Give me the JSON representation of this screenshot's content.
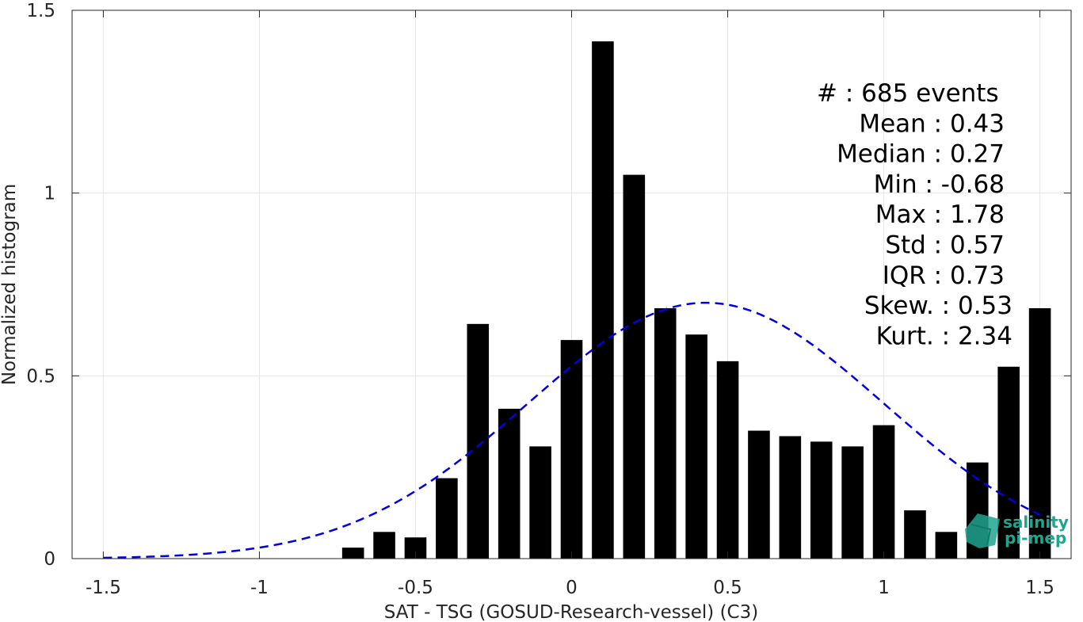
{
  "chart_data": {
    "type": "bar",
    "xlabel": "SAT - TSG (GOSUD-Research-vessel) (C3)",
    "ylabel": "Normalized histogram",
    "xlim": [
      -1.6,
      1.6
    ],
    "ylim": [
      0,
      1.5
    ],
    "grid": true,
    "x_ticks": [
      "-1.5",
      "-1",
      "-0.5",
      "0",
      "0.5",
      "1",
      "1.5"
    ],
    "y_ticks": [
      "0",
      "0.5",
      "1",
      "1.5"
    ],
    "bins": {
      "centers": [
        -0.7,
        -0.6,
        -0.5,
        -0.4,
        -0.3,
        -0.2,
        -0.1,
        0.0,
        0.1,
        0.2,
        0.3,
        0.4,
        0.5,
        0.6,
        0.7,
        0.8,
        0.9,
        1.0,
        1.1,
        1.2,
        1.3,
        1.4,
        1.5
      ],
      "values": [
        0.03,
        0.073,
        0.058,
        0.22,
        0.642,
        0.41,
        0.307,
        0.598,
        1.415,
        1.05,
        0.685,
        0.613,
        0.54,
        0.35,
        0.335,
        0.32,
        0.307,
        0.365,
        0.132,
        0.073,
        0.263,
        0.525,
        0.685
      ],
      "bar_color": "#000000"
    },
    "fit": {
      "style": "dashed",
      "color": "#0000e6",
      "mean": 0.43,
      "std": 0.57,
      "range": [
        -1.5,
        1.5
      ]
    },
    "stats": [
      {
        "name": "stat-events",
        "text": "#  : 685 events",
        "anchor": "start"
      },
      {
        "name": "stat-mean",
        "text": "Mean : 0.43",
        "anchor": "end"
      },
      {
        "name": "stat-median",
        "text": "Median : 0.27",
        "anchor": "end"
      },
      {
        "name": "stat-min",
        "text": "Min : -0.68",
        "anchor": "end"
      },
      {
        "name": "stat-max",
        "text": "Max : 1.78",
        "anchor": "end"
      },
      {
        "name": "stat-std",
        "text": "Std : 0.57",
        "anchor": "end"
      },
      {
        "name": "stat-iqr",
        "text": "IQR : 0.73",
        "anchor": "end"
      },
      {
        "name": "stat-skew",
        "text": "Skew. : 0.53",
        "anchor": "end"
      },
      {
        "name": "stat-kurt",
        "text": "Kurt. : 2.34",
        "anchor": "end"
      }
    ]
  },
  "logo": {
    "line1": "salinity",
    "line2": "pi-mep",
    "color": "#1fa58e"
  }
}
